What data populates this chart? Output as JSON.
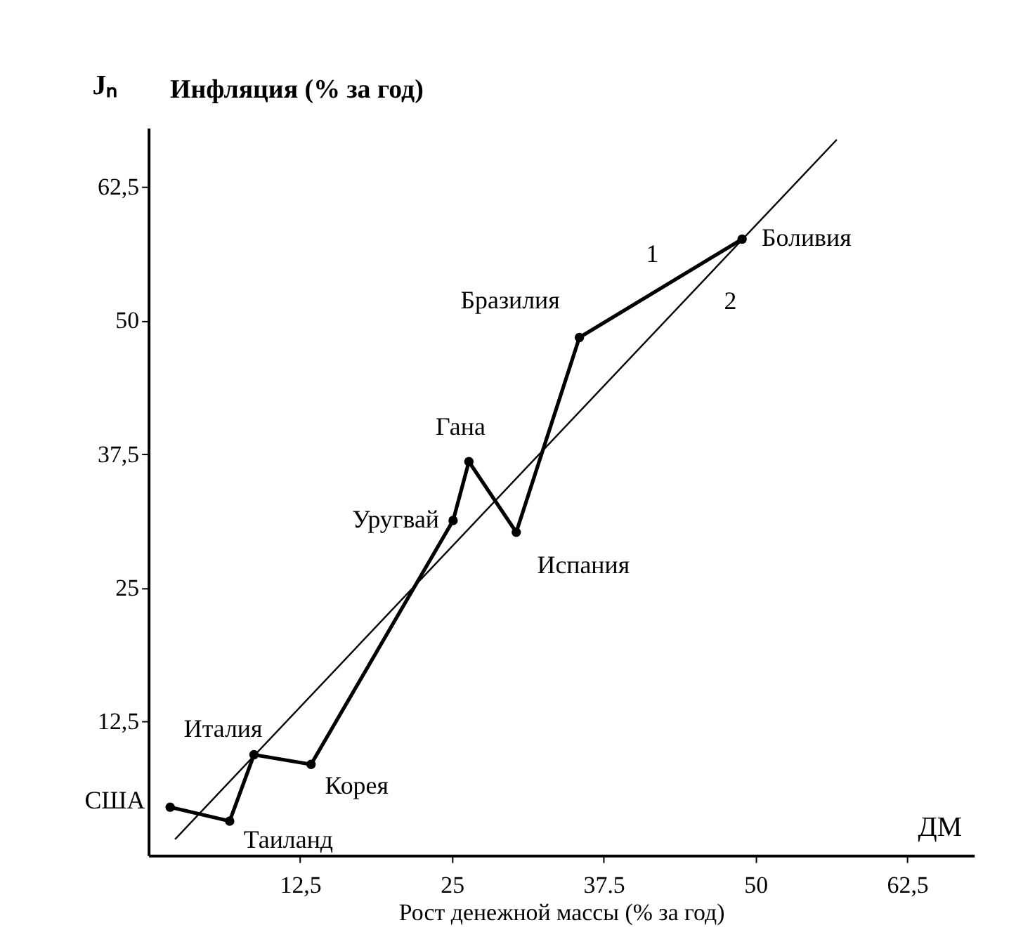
{
  "chart_data": {
    "type": "line",
    "xlabel": "Рост денежной массы (% за год)",
    "ylabel": "Инфляция (% за год)",
    "xlim": [
      0,
      68
    ],
    "ylim": [
      0,
      68
    ],
    "xticks": [
      {
        "value": 12.5,
        "label": "12,5"
      },
      25,
      {
        "value": 37.5,
        "label": "37.5"
      },
      50,
      {
        "value": 62.5,
        "label": "62,5"
      }
    ],
    "yticks": [
      {
        "value": 12.5,
        "label": "12,5"
      },
      25,
      {
        "value": 37.5,
        "label": "37,5"
      },
      50,
      {
        "value": 62.5,
        "label": "62,5"
      }
    ],
    "grid": false,
    "series": [
      {
        "name": "1",
        "color": "#000000",
        "marker": "circle",
        "x": [
          1.8,
          6.7,
          8.7,
          13.4,
          25.1,
          26.4,
          30.3,
          35.5,
          48.9
        ],
        "values": [
          4.5,
          3.2,
          9.4,
          8.5,
          31.3,
          36.8,
          30.2,
          48.4,
          57.6
        ]
      },
      {
        "name": "2",
        "color": "#000000",
        "type": "line",
        "x": [
          2.2,
          56.7
        ],
        "values": [
          1.5,
          66.9
        ]
      }
    ],
    "annotations": [
      {
        "text": "США",
        "x": 1.8,
        "y": 4.5
      },
      {
        "text": "Таиланд",
        "x": 6.7,
        "y": 3.2
      },
      {
        "text": "Италия",
        "x": 8.7,
        "y": 9.4
      },
      {
        "text": "Корея",
        "x": 13.4,
        "y": 8.5
      },
      {
        "text": "Уругвай",
        "x": 25.1,
        "y": 31.3
      },
      {
        "text": "Гана",
        "x": 26.4,
        "y": 36.8
      },
      {
        "text": "Испания",
        "x": 30.3,
        "y": 30.2
      },
      {
        "text": "Бразилия",
        "x": 35.5,
        "y": 48.4
      },
      {
        "text": "Боливия",
        "x": 48.9,
        "y": 57.6
      },
      "Jₙ",
      "ДМ"
    ]
  }
}
